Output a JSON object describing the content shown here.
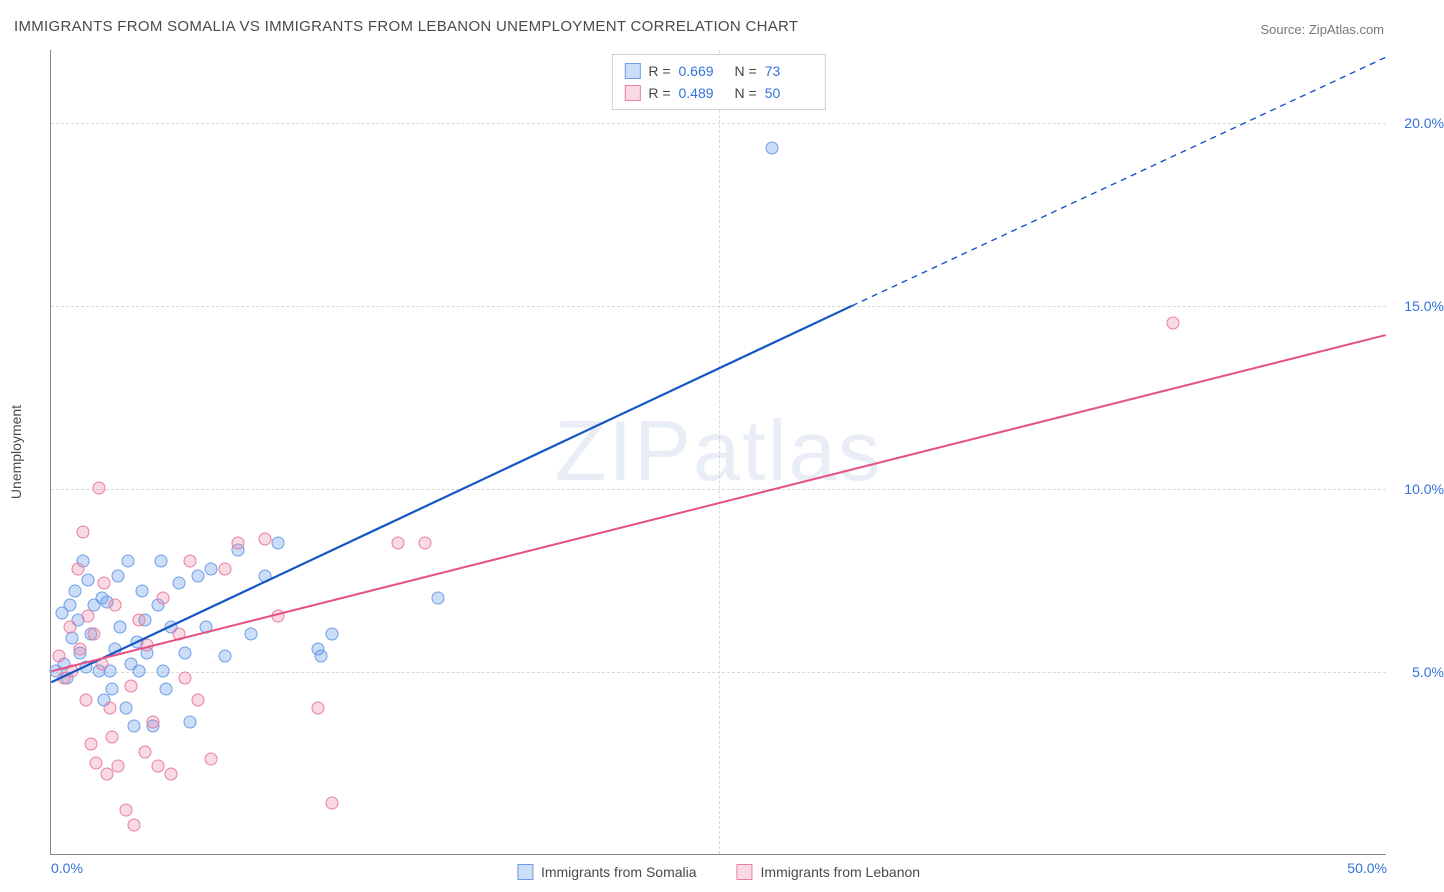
{
  "title": "IMMIGRANTS FROM SOMALIA VS IMMIGRANTS FROM LEBANON UNEMPLOYMENT CORRELATION CHART",
  "source": "Source: ZipAtlas.com",
  "watermark": "ZIPatlas",
  "chart": {
    "type": "scatter",
    "xlim": [
      0,
      50
    ],
    "ylim": [
      0,
      22
    ],
    "xtick_values": [
      0,
      50
    ],
    "xtick_labels": [
      "0.0%",
      "50.0%"
    ],
    "ytick_values": [
      5,
      10,
      15,
      20
    ],
    "ytick_labels": [
      "5.0%",
      "10.0%",
      "15.0%",
      "20.0%"
    ],
    "grid_v_at": [
      25
    ],
    "background_color": "#ffffff",
    "grid_color": "#d9d9d9",
    "axis_label_color": "#3272d9",
    "ylabel": "Unemployment"
  },
  "series": [
    {
      "name": "Immigrants from Somalia",
      "key": "somalia",
      "fill": "rgba(109,158,235,0.35)",
      "stroke": "#6d9eeb",
      "line_color": "#1556c5",
      "line_width": 2.2,
      "R": "0.669",
      "N": "73",
      "trend": {
        "x1": 0,
        "y1": 4.7,
        "x2": 30,
        "y2": 15.0,
        "extend_x2": 50,
        "extend_y2": 21.8
      },
      "points": [
        [
          0.2,
          5.0
        ],
        [
          0.4,
          6.6
        ],
        [
          0.5,
          5.2
        ],
        [
          0.6,
          4.8
        ],
        [
          0.7,
          6.8
        ],
        [
          0.8,
          5.9
        ],
        [
          0.9,
          7.2
        ],
        [
          1.0,
          6.4
        ],
        [
          1.1,
          5.5
        ],
        [
          1.2,
          8.0
        ],
        [
          1.3,
          5.1
        ],
        [
          1.4,
          7.5
        ],
        [
          1.5,
          6.0
        ],
        [
          1.6,
          6.8
        ],
        [
          1.8,
          5.0
        ],
        [
          1.9,
          7.0
        ],
        [
          2.0,
          4.2
        ],
        [
          2.1,
          6.9
        ],
        [
          2.2,
          5.0
        ],
        [
          2.3,
          4.5
        ],
        [
          2.4,
          5.6
        ],
        [
          2.5,
          7.6
        ],
        [
          2.6,
          6.2
        ],
        [
          2.8,
          4.0
        ],
        [
          2.9,
          8.0
        ],
        [
          3.0,
          5.2
        ],
        [
          3.1,
          3.5
        ],
        [
          3.2,
          5.8
        ],
        [
          3.3,
          5.0
        ],
        [
          3.4,
          7.2
        ],
        [
          3.5,
          6.4
        ],
        [
          3.6,
          5.5
        ],
        [
          3.8,
          3.5
        ],
        [
          4.0,
          6.8
        ],
        [
          4.1,
          8.0
        ],
        [
          4.2,
          5.0
        ],
        [
          4.3,
          4.5
        ],
        [
          4.5,
          6.2
        ],
        [
          4.8,
          7.4
        ],
        [
          5.0,
          5.5
        ],
        [
          5.2,
          3.6
        ],
        [
          5.5,
          7.6
        ],
        [
          5.8,
          6.2
        ],
        [
          6.0,
          7.8
        ],
        [
          6.5,
          5.4
        ],
        [
          7.0,
          8.3
        ],
        [
          7.5,
          6.0
        ],
        [
          8.0,
          7.6
        ],
        [
          8.5,
          8.5
        ],
        [
          10.0,
          5.6
        ],
        [
          10.1,
          5.4
        ],
        [
          10.5,
          6.0
        ],
        [
          14.5,
          7.0
        ],
        [
          27.0,
          19.3
        ]
      ]
    },
    {
      "name": "Immigrants from Lebanon",
      "key": "lebanon",
      "fill": "rgba(234,128,160,0.30)",
      "stroke": "#ea80a0",
      "line_color": "#e55383",
      "line_width": 2.0,
      "R": "0.489",
      "N": "50",
      "trend": {
        "x1": 0,
        "y1": 5.0,
        "x2": 50,
        "y2": 14.2
      },
      "points": [
        [
          0.3,
          5.4
        ],
        [
          0.5,
          4.8
        ],
        [
          0.7,
          6.2
        ],
        [
          0.8,
          5.0
        ],
        [
          1.0,
          7.8
        ],
        [
          1.1,
          5.6
        ],
        [
          1.2,
          8.8
        ],
        [
          1.3,
          4.2
        ],
        [
          1.4,
          6.5
        ],
        [
          1.5,
          3.0
        ],
        [
          1.6,
          6.0
        ],
        [
          1.7,
          2.5
        ],
        [
          1.8,
          10.0
        ],
        [
          1.9,
          5.2
        ],
        [
          2.0,
          7.4
        ],
        [
          2.1,
          2.2
        ],
        [
          2.2,
          4.0
        ],
        [
          2.3,
          3.2
        ],
        [
          2.4,
          6.8
        ],
        [
          2.5,
          2.4
        ],
        [
          2.8,
          1.2
        ],
        [
          3.0,
          4.6
        ],
        [
          3.1,
          0.8
        ],
        [
          3.3,
          6.4
        ],
        [
          3.5,
          2.8
        ],
        [
          3.6,
          5.7
        ],
        [
          3.8,
          3.6
        ],
        [
          4.0,
          2.4
        ],
        [
          4.2,
          7.0
        ],
        [
          4.5,
          2.2
        ],
        [
          4.8,
          6.0
        ],
        [
          5.0,
          4.8
        ],
        [
          5.2,
          8.0
        ],
        [
          5.5,
          4.2
        ],
        [
          6.0,
          2.6
        ],
        [
          6.5,
          7.8
        ],
        [
          7.0,
          8.5
        ],
        [
          8.0,
          8.6
        ],
        [
          8.5,
          6.5
        ],
        [
          10.0,
          4.0
        ],
        [
          10.5,
          1.4
        ],
        [
          13.0,
          8.5
        ],
        [
          14.0,
          8.5
        ],
        [
          42.0,
          14.5
        ]
      ]
    }
  ]
}
